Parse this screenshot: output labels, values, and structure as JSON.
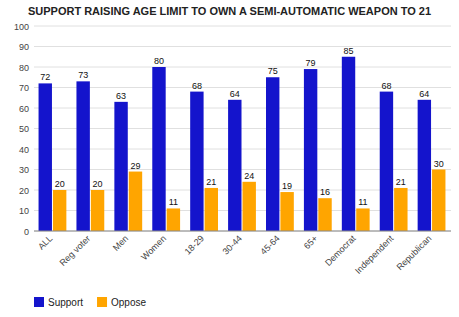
{
  "chart_data": {
    "type": "bar",
    "title": "SUPPORT RAISING AGE LIMIT TO OWN A SEMI-AUTOMATIC WEAPON TO 21",
    "categories": [
      "ALL",
      "Reg voter",
      "Men",
      "Women",
      "18-29",
      "30-44",
      "45-64",
      "65+",
      "Democrat",
      "Independent",
      "Republican"
    ],
    "series": [
      {
        "name": "Support",
        "color": "#1414CC",
        "values": [
          72,
          73,
          63,
          80,
          68,
          64,
          75,
          79,
          85,
          68,
          64
        ]
      },
      {
        "name": "Oppose",
        "color": "#FFA500",
        "values": [
          20,
          20,
          29,
          11,
          21,
          24,
          19,
          16,
          11,
          21,
          30
        ]
      }
    ],
    "ylim": [
      0,
      100
    ],
    "yticks": [
      0,
      10,
      20,
      30,
      40,
      50,
      60,
      70,
      80,
      90,
      100
    ],
    "grid": true,
    "legend": "bottom",
    "data_labels": true
  }
}
